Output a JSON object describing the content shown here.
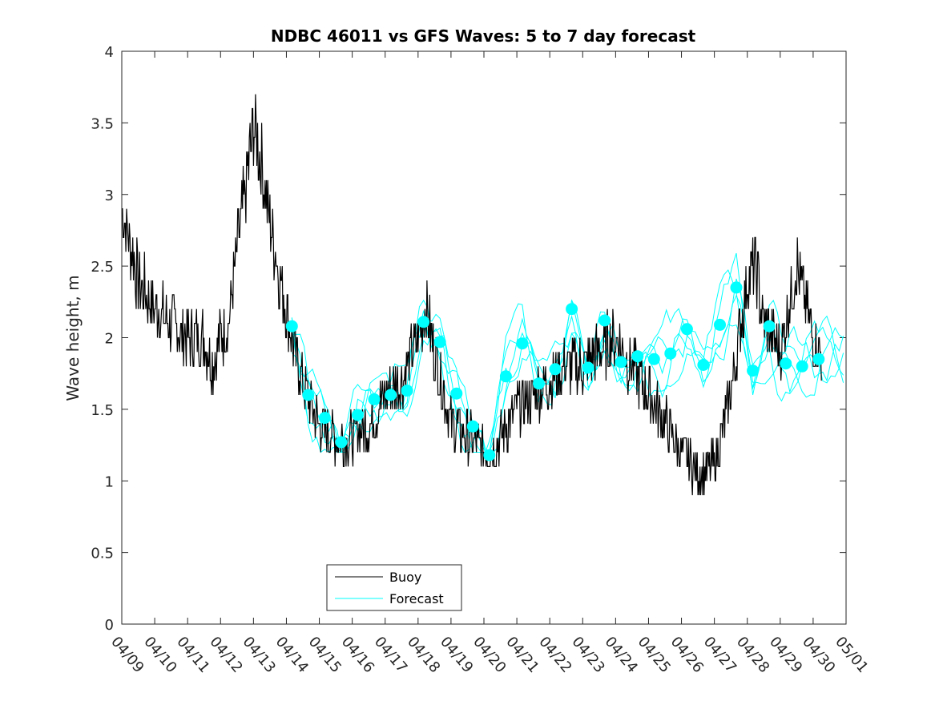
{
  "chart_data": {
    "type": "line",
    "title": "NDBC 46011 vs GFS Waves: 5 to 7 day forecast",
    "xlabel": "",
    "ylabel": "Wave height, m",
    "ylim": [
      0,
      4
    ],
    "xlim": [
      "04/09",
      "05/01"
    ],
    "y_ticks": [
      "0",
      "0.5",
      "1",
      "1.5",
      "2",
      "2.5",
      "3",
      "3.5",
      "4"
    ],
    "x_ticks": [
      "04/09",
      "04/10",
      "04/11",
      "04/12",
      "04/13",
      "04/14",
      "04/15",
      "04/16",
      "04/17",
      "04/18",
      "04/19",
      "04/20",
      "04/21",
      "04/22",
      "04/23",
      "04/24",
      "04/25",
      "04/26",
      "04/27",
      "04/28",
      "04/29",
      "04/30",
      "05/01"
    ],
    "legend": {
      "position": "bottom-center",
      "entries": [
        "Buoy",
        "Forecast"
      ]
    },
    "colors": {
      "buoy": "#000000",
      "forecast": "#00ffff"
    },
    "buoy_anchor_points": [
      {
        "x": "04/09 00:00",
        "y": 2.9
      },
      {
        "x": "04/09 12:00",
        "y": 2.4
      },
      {
        "x": "04/10 00:00",
        "y": 2.2
      },
      {
        "x": "04/10 12:00",
        "y": 2.1
      },
      {
        "x": "04/11 00:00",
        "y": 2.0
      },
      {
        "x": "04/11 12:00",
        "y": 2.0
      },
      {
        "x": "04/11 18:00",
        "y": 1.8
      },
      {
        "x": "04/12 00:00",
        "y": 2.0
      },
      {
        "x": "04/12 06:00",
        "y": 2.1
      },
      {
        "x": "04/12 12:00",
        "y": 2.6
      },
      {
        "x": "04/12 18:00",
        "y": 3.0
      },
      {
        "x": "04/13 00:00",
        "y": 3.5
      },
      {
        "x": "04/13 06:00",
        "y": 3.2
      },
      {
        "x": "04/13 12:00",
        "y": 2.8
      },
      {
        "x": "04/13 18:00",
        "y": 2.5
      },
      {
        "x": "04/14 00:00",
        "y": 2.2
      },
      {
        "x": "04/14 06:00",
        "y": 1.9
      },
      {
        "x": "04/14 12:00",
        "y": 1.7
      },
      {
        "x": "04/15 00:00",
        "y": 1.4
      },
      {
        "x": "04/15 12:00",
        "y": 1.3
      },
      {
        "x": "04/16 00:00",
        "y": 1.3
      },
      {
        "x": "04/16 12:00",
        "y": 1.4
      },
      {
        "x": "04/17 00:00",
        "y": 1.6
      },
      {
        "x": "04/17 12:00",
        "y": 1.7
      },
      {
        "x": "04/18 00:00",
        "y": 2.0
      },
      {
        "x": "04/18 06:00",
        "y": 2.2
      },
      {
        "x": "04/18 12:00",
        "y": 1.9
      },
      {
        "x": "04/19 00:00",
        "y": 1.4
      },
      {
        "x": "04/19 12:00",
        "y": 1.3
      },
      {
        "x": "04/20 00:00",
        "y": 1.2
      },
      {
        "x": "04/20 12:00",
        "y": 1.3
      },
      {
        "x": "04/21 00:00",
        "y": 1.5
      },
      {
        "x": "04/21 12:00",
        "y": 1.6
      },
      {
        "x": "04/22 00:00",
        "y": 1.7
      },
      {
        "x": "04/22 12:00",
        "y": 1.8
      },
      {
        "x": "04/23 00:00",
        "y": 1.8
      },
      {
        "x": "04/23 12:00",
        "y": 1.9
      },
      {
        "x": "04/24 00:00",
        "y": 2.0
      },
      {
        "x": "04/24 12:00",
        "y": 1.8
      },
      {
        "x": "04/25 00:00",
        "y": 1.6
      },
      {
        "x": "04/25 12:00",
        "y": 1.4
      },
      {
        "x": "04/26 00:00",
        "y": 1.2
      },
      {
        "x": "04/26 12:00",
        "y": 1.05
      },
      {
        "x": "04/27 00:00",
        "y": 1.1
      },
      {
        "x": "04/27 12:00",
        "y": 1.6
      },
      {
        "x": "04/28 00:00",
        "y": 2.4
      },
      {
        "x": "04/28 06:00",
        "y": 2.5
      },
      {
        "x": "04/28 12:00",
        "y": 2.1
      },
      {
        "x": "04/29 00:00",
        "y": 1.9
      },
      {
        "x": "04/29 12:00",
        "y": 2.5
      },
      {
        "x": "04/30 00:00",
        "y": 2.0
      },
      {
        "x": "04/30 06:00",
        "y": 1.9
      }
    ],
    "forecast_points": [
      {
        "x": "04/14 04:00",
        "y": 2.08
      },
      {
        "x": "04/14 16:00",
        "y": 1.6
      },
      {
        "x": "04/15 04:00",
        "y": 1.44
      },
      {
        "x": "04/15 16:00",
        "y": 1.27
      },
      {
        "x": "04/16 04:00",
        "y": 1.46
      },
      {
        "x": "04/16 16:00",
        "y": 1.57
      },
      {
        "x": "04/17 04:00",
        "y": 1.6
      },
      {
        "x": "04/17 16:00",
        "y": 1.63
      },
      {
        "x": "04/18 04:00",
        "y": 2.11
      },
      {
        "x": "04/18 16:00",
        "y": 1.97
      },
      {
        "x": "04/19 04:00",
        "y": 1.61
      },
      {
        "x": "04/19 16:00",
        "y": 1.38
      },
      {
        "x": "04/20 04:00",
        "y": 1.18
      },
      {
        "x": "04/20 16:00",
        "y": 1.73
      },
      {
        "x": "04/21 04:00",
        "y": 1.96
      },
      {
        "x": "04/21 16:00",
        "y": 1.68
      },
      {
        "x": "04/22 04:00",
        "y": 1.78
      },
      {
        "x": "04/22 16:00",
        "y": 2.2
      },
      {
        "x": "04/23 04:00",
        "y": 1.79
      },
      {
        "x": "04/23 16:00",
        "y": 2.12
      },
      {
        "x": "04/24 04:00",
        "y": 1.83
      },
      {
        "x": "04/24 16:00",
        "y": 1.87
      },
      {
        "x": "04/25 04:00",
        "y": 1.85
      },
      {
        "x": "04/25 16:00",
        "y": 1.89
      },
      {
        "x": "04/26 04:00",
        "y": 2.06
      },
      {
        "x": "04/26 16:00",
        "y": 1.81
      },
      {
        "x": "04/27 04:00",
        "y": 2.09
      },
      {
        "x": "04/27 16:00",
        "y": 2.35
      },
      {
        "x": "04/28 04:00",
        "y": 1.77
      },
      {
        "x": "04/28 16:00",
        "y": 2.08
      },
      {
        "x": "04/29 04:00",
        "y": 1.82
      },
      {
        "x": "04/29 16:00",
        "y": 1.8
      },
      {
        "x": "04/30 04:00",
        "y": 1.85
      }
    ]
  }
}
